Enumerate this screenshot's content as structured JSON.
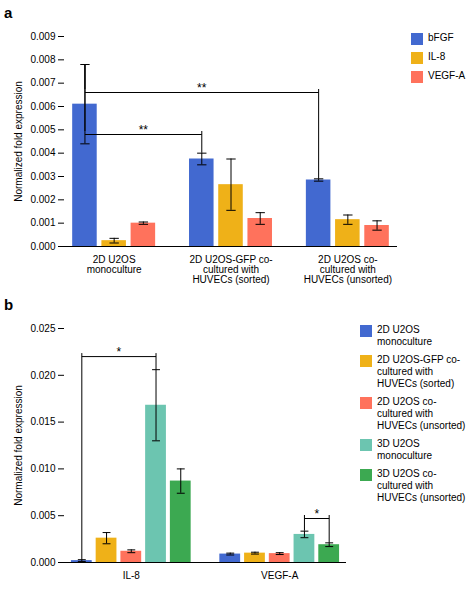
{
  "chart_data": [
    {
      "type": "bar",
      "title": "a",
      "categories": [
        "2D U2OS\nmonoculture",
        "2D U2OS-GFP co-\ncultured with\nHUVECs (sorted)",
        "2D U2OS co-\ncultured with\nHUVECs (unsorted)"
      ],
      "series": [
        {
          "name": "bFGF",
          "values": [
            0.0061,
            0.00375,
            0.00285
          ],
          "errors": [
            0.0017,
            0.00025,
            5e-05
          ]
        },
        {
          "name": "IL-8",
          "values": [
            0.00025,
            0.00265,
            0.00115
          ],
          "errors": [
            0.0001,
            0.0011,
            0.0002
          ]
        },
        {
          "name": "VEGF-A",
          "values": [
            0.001,
            0.0012,
            0.0009
          ],
          "errors": [
            5e-05,
            0.00025,
            0.0002
          ]
        }
      ],
      "ylabel": "Normalized fold expression",
      "ylim": [
        0,
        0.009
      ],
      "yticks": [
        {
          "value": 0,
          "label": "0.000"
        },
        {
          "value": 0.001,
          "label": "0.001"
        },
        {
          "value": 0.002,
          "label": "0.002"
        },
        {
          "value": 0.003,
          "label": "0.003"
        },
        {
          "value": 0.004,
          "label": "0.004"
        },
        {
          "value": 0.005,
          "label": "0.005"
        },
        {
          "value": 0.006,
          "label": "0.006"
        },
        {
          "value": 0.007,
          "label": "0.007"
        },
        {
          "value": 0.008,
          "label": "0.008"
        },
        {
          "value": 0.009,
          "label": "0.009"
        }
      ],
      "annotations": [
        {
          "text": "**",
          "y": 0.0048,
          "from": {
            "category": "2D U2OS\nmonoculture",
            "series": "bFGF"
          },
          "to": {
            "category": "2D U2OS-GFP co-\ncultured with\nHUVECs (sorted)",
            "series": "bFGF"
          }
        },
        {
          "text": "**",
          "y": 0.0066,
          "from": {
            "category": "2D U2OS\nmonoculture",
            "series": "bFGF"
          },
          "to": {
            "category": "2D U2OS co-\ncultured with\nHUVECs (unsorted)",
            "series": "bFGF"
          }
        }
      ],
      "legend": "right"
    },
    {
      "type": "bar",
      "title": "b",
      "categories": [
        "IL-8",
        "VEGF-A"
      ],
      "series": [
        {
          "name": "2D U2OS\nmonoculture",
          "values": [
            0.0002,
            0.0009
          ],
          "errors": [
            0.0001,
            0.0001
          ]
        },
        {
          "name": "2D U2OS-GFP co-\ncultured with\nHUVECs (sorted)",
          "values": [
            0.0026,
            0.001
          ],
          "errors": [
            0.0006,
            0.0001
          ]
        },
        {
          "name": "2D U2OS co-\ncultured with\nHUVECs (unsorted)",
          "values": [
            0.0012,
            0.00095
          ],
          "errors": [
            0.00015,
            0.0001
          ]
        },
        {
          "name": "3D U2OS\nmonoculture",
          "values": [
            0.0168,
            0.003
          ],
          "errors": [
            0.0038,
            0.00035
          ]
        },
        {
          "name": "3D U2OS co-\ncultured with\nHUVECs (unsorted)",
          "values": [
            0.0087,
            0.0019
          ],
          "errors": [
            0.0013,
            0.0002
          ]
        }
      ],
      "ylabel": "Normalized fold expression",
      "ylim": [
        0,
        0.025
      ],
      "yticks": [
        {
          "value": 0,
          "label": "0.000"
        },
        {
          "value": 0.005,
          "label": "0.005"
        },
        {
          "value": 0.01,
          "label": "0.010"
        },
        {
          "value": 0.015,
          "label": "0.015"
        },
        {
          "value": 0.02,
          "label": "0.020"
        },
        {
          "value": 0.025,
          "label": "0.025"
        }
      ],
      "annotations": [
        {
          "text": "*",
          "y": 0.022,
          "from": {
            "category": "IL-8",
            "series": "2D U2OS\nmonoculture"
          },
          "to": {
            "category": "IL-8",
            "series": "3D U2OS\nmonoculture"
          }
        },
        {
          "text": "*",
          "y": 0.0047,
          "from": {
            "category": "VEGF-A",
            "series": "3D U2OS\nmonoculture"
          },
          "to": {
            "category": "VEGF-A",
            "series": "3D U2OS co-\ncultured with\nHUVECs (unsorted)"
          }
        }
      ],
      "legend": "right"
    }
  ]
}
